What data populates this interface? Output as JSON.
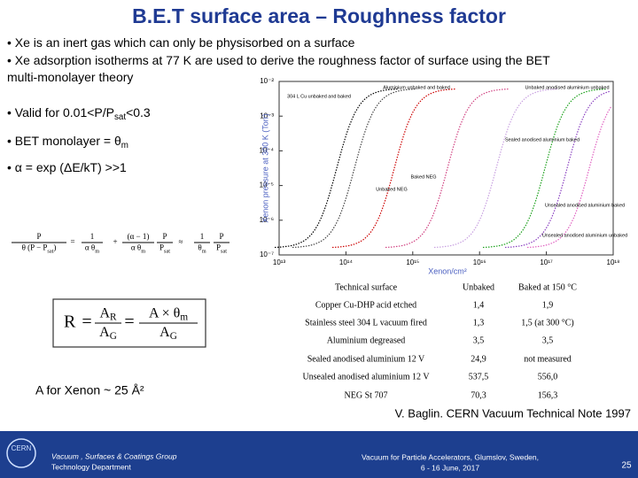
{
  "header": {
    "title": "B.E.T surface area – Roughness factor"
  },
  "bullets": [
    [
      {
        "t": "• Xe is an inert gas which can only be physisorbed on a surface"
      }
    ],
    [
      {
        "t": "• Xe adsorption isotherms at 77 K are used to derive the roughness factor of surface using the BET"
      }
    ],
    [
      {
        "t": "multi-monolayer theory"
      }
    ],
    [
      {
        "t": "• Valid for 0.01<P/P"
      },
      {
        "sub": "sat"
      },
      {
        "t": "<0.3"
      }
    ],
    [
      {
        "t": "• BET monolayer = θ"
      },
      {
        "sub": "m"
      }
    ],
    [
      {
        "t": "• α = exp (ΔE/kT) >>1"
      }
    ]
  ],
  "bet": {
    "f1": {
      "num": [
        {
          "t": "P"
        }
      ],
      "den": [
        {
          "t": "θ (P − P"
        },
        {
          "sub": "sat"
        },
        {
          "t": ")"
        }
      ]
    },
    "op1": "=",
    "f2": {
      "num": [
        {
          "t": "1"
        }
      ],
      "den": [
        {
          "t": "α θ"
        },
        {
          "sub": "m"
        }
      ]
    },
    "op2": "+",
    "f3": {
      "num": [
        {
          "t": "(α − 1)"
        }
      ],
      "den": [
        {
          "t": "α θ"
        },
        {
          "sub": "m"
        }
      ]
    },
    "f4": {
      "num": [
        {
          "t": "P"
        }
      ],
      "den": [
        {
          "t": "P"
        },
        {
          "sub": "sat"
        }
      ]
    },
    "op3": "≈",
    "f5": {
      "num": [
        {
          "t": "1"
        }
      ],
      "den": [
        {
          "t": "θ"
        },
        {
          "sub": "m"
        }
      ]
    },
    "f6": {
      "num": [
        {
          "t": "P"
        }
      ],
      "den": [
        {
          "t": "P"
        },
        {
          "sub": "sat"
        }
      ]
    }
  },
  "roughness": {
    "lhs": "R",
    "op1": "=",
    "f1": {
      "num": [
        {
          "t": "A"
        },
        {
          "sub": "R"
        }
      ],
      "den": [
        {
          "t": "A"
        },
        {
          "sub": "G"
        }
      ]
    },
    "op2": "=",
    "f2": {
      "num": [
        {
          "t": "A × θ"
        },
        {
          "sub": "m"
        }
      ],
      "den": [
        {
          "t": "A"
        },
        {
          "sub": "G"
        }
      ]
    }
  },
  "xenon_note": "A for Xenon ~ 25 Å²",
  "figure": {
    "ylabel": "Xenon pressure at 300 K (Torr)",
    "xlabel": "Xenon/cm²",
    "yticks": [
      "10⁻²",
      "10⁻³",
      "10⁻⁴",
      "10⁻⁵",
      "10⁻⁶",
      "10⁻⁷"
    ],
    "xticks": [
      "10¹³",
      "10¹⁴",
      "10¹⁵",
      "10¹⁶",
      "10¹⁷",
      "10¹⁸"
    ],
    "labels": [
      "304 L Cu unbaked and baked",
      "Aluminium unbaked and baked",
      "Unbaked anodised aluminium unbaked",
      "Sealed anodised aluminium baked",
      "Unbaked NEG",
      "Baked NEG",
      "Unsealed anodised aluminium baked",
      "Unsealed anodised aluminium unbaked"
    ]
  },
  "table": {
    "header": [
      "Technical surface",
      "Unbaked",
      "Baked at 150 °C"
    ],
    "rows": [
      [
        "Copper Cu-DHP acid etched",
        "1,4",
        "1,9"
      ],
      [
        "Stainless steel 304 L vacuum fired",
        "1,3",
        "1,5 (at 300 °C)"
      ],
      [
        "Aluminium degreased",
        "3,5",
        "3,5"
      ],
      [
        "Sealed anodised aluminium 12 V",
        "24,9",
        "not measured"
      ],
      [
        "Unsealed anodised aluminium 12 V",
        "537,5",
        "556,0"
      ],
      [
        "NEG St 707",
        "70,3",
        "156,3"
      ]
    ]
  },
  "reference": "V. Baglin. CERN Vacuum Technical Note 1997",
  "footer": {
    "logo": "CERN",
    "group": "Vacuum , Surfaces & Coatings Group",
    "department": "Technology Department",
    "event1": "Vacuum for Particle Accelerators, Glumslov, Sweden,",
    "event2": "6 - 16 June, 2017",
    "page": "25"
  }
}
